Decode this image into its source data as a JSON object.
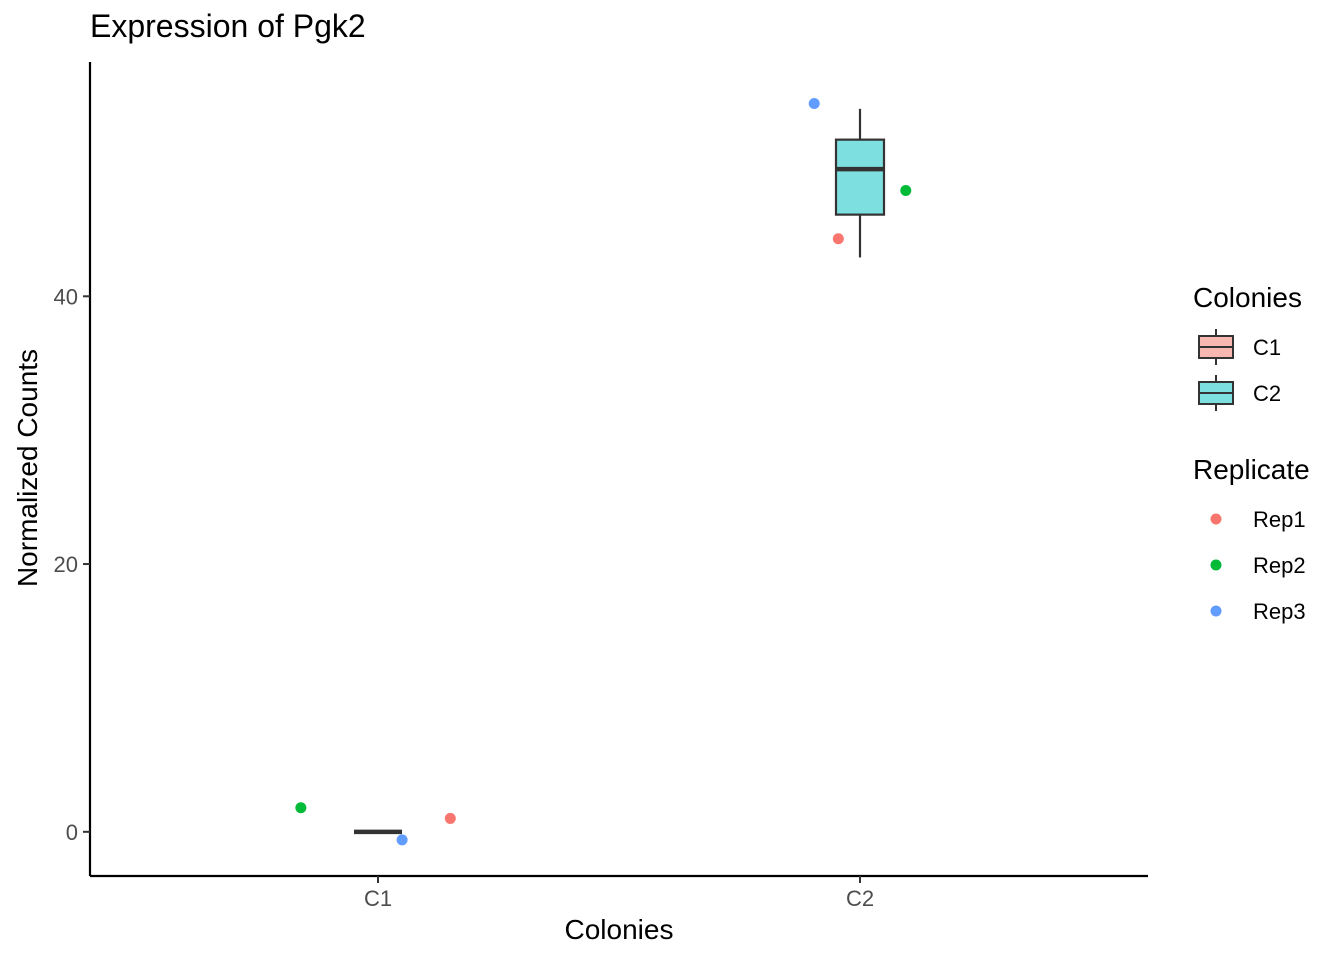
{
  "chart_data": {
    "type": "box",
    "title": "Expression of Pgk2",
    "xlabel": "Colonies",
    "ylabel": "Normalized Counts",
    "categories": [
      "C1",
      "C2"
    ],
    "ylim": [
      -3.3,
      57.5
    ],
    "yticks": [
      0,
      20,
      40
    ],
    "grid": false,
    "legend_placement": "right",
    "boxes": [
      {
        "category": "C1",
        "min": 0,
        "q1": 0,
        "median": 0,
        "q3": 0,
        "max": 0,
        "fill": "#F8B7B0"
      },
      {
        "category": "C2",
        "min": 42.9,
        "q1": 46.1,
        "median": 49.5,
        "q3": 51.7,
        "max": 54.0,
        "fill": "#7EDFE0"
      }
    ],
    "points": [
      {
        "category": "C1",
        "replicate": "Rep1",
        "y": 1.0,
        "jitter": 0.15
      },
      {
        "category": "C1",
        "replicate": "Rep2",
        "y": 1.8,
        "jitter": -0.16
      },
      {
        "category": "C1",
        "replicate": "Rep3",
        "y": -0.6,
        "jitter": 0.05
      },
      {
        "category": "C2",
        "replicate": "Rep1",
        "y": 44.3,
        "jitter": -0.045
      },
      {
        "category": "C2",
        "replicate": "Rep2",
        "y": 47.9,
        "jitter": 0.095
      },
      {
        "category": "C2",
        "replicate": "Rep3",
        "y": 54.4,
        "jitter": -0.095
      }
    ],
    "legends": [
      {
        "title": "Colonies",
        "kind": "box",
        "entries": [
          {
            "label": "C1",
            "color": "#F8B7B0"
          },
          {
            "label": "C2",
            "color": "#7EDFE0"
          }
        ]
      },
      {
        "title": "Replicate",
        "kind": "point",
        "entries": [
          {
            "label": "Rep1",
            "color": "#F8766D"
          },
          {
            "label": "Rep2",
            "color": "#00BA38"
          },
          {
            "label": "Rep3",
            "color": "#619CFF"
          }
        ]
      }
    ],
    "replicate_colors": {
      "Rep1": "#F8766D",
      "Rep2": "#00BA38",
      "Rep3": "#619CFF"
    },
    "box_outline_color": "#333333"
  }
}
